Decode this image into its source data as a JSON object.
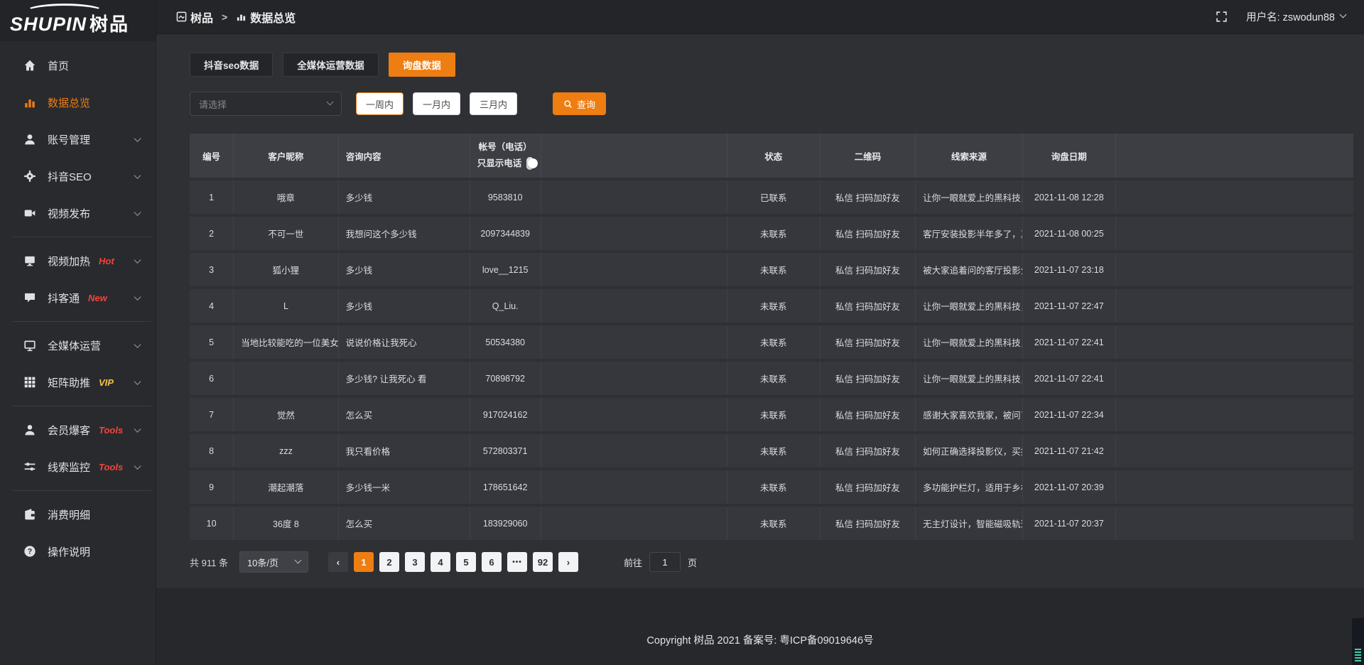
{
  "header": {
    "breadcrumb": [
      {
        "label": "树品"
      },
      {
        "label": "数据总览"
      }
    ],
    "breadcrumb_separator": ">",
    "username_label": "用户名: zswodun88"
  },
  "sidebar": {
    "logo_primary": "SHUPIN",
    "logo_secondary": "树品",
    "items": [
      {
        "label": "首页",
        "icon": "home-icon"
      },
      {
        "label": "数据总览",
        "icon": "chart-icon",
        "active": true
      },
      {
        "label": "账号管理",
        "icon": "user-icon",
        "chevron": true
      },
      {
        "label": "抖音SEO",
        "icon": "gear-icon",
        "chevron": true
      },
      {
        "label": "视频发布",
        "icon": "video-icon",
        "chevron": true
      },
      {
        "divider": true
      },
      {
        "label": "视频加热",
        "icon": "monitor-icon",
        "badge": "Hot",
        "badge_color": "#f1453d",
        "chevron": true
      },
      {
        "label": "抖客通",
        "icon": "chat-icon",
        "badge": "New",
        "badge_color": "#f1453d",
        "chevron": true
      },
      {
        "divider": true
      },
      {
        "label": "全媒体运营",
        "icon": "screen-icon",
        "chevron": true
      },
      {
        "label": "矩阵助推",
        "icon": "grid-icon",
        "badge": "VIP",
        "badge_color": "#f6c444",
        "chevron": true
      },
      {
        "divider": true
      },
      {
        "label": "会员爆客",
        "icon": "member-icon",
        "badge": "Tools",
        "badge_color": "#f1453d",
        "chevron": true
      },
      {
        "label": "线索监控",
        "icon": "sliders-icon",
        "badge": "Tools",
        "badge_color": "#f1453d",
        "chevron": true
      },
      {
        "divider": true
      },
      {
        "label": "消费明细",
        "icon": "wallet-icon"
      },
      {
        "label": "操作说明",
        "icon": "help-icon"
      }
    ]
  },
  "tabs": [
    {
      "label": "抖音seo数据",
      "active": false
    },
    {
      "label": "全媒体运营数据",
      "active": false
    },
    {
      "label": "询盘数据",
      "active": true
    }
  ],
  "filters": {
    "select_placeholder": "请选择",
    "date_ranges": [
      {
        "label": "一周内",
        "selected": true
      },
      {
        "label": "一月内",
        "selected": false
      },
      {
        "label": "三月内",
        "selected": false
      }
    ],
    "search_button": "查询"
  },
  "table": {
    "columns": [
      "编号",
      "客户昵称",
      "咨询内容",
      "帐号（电话）",
      "状态",
      "二维码",
      "线索来源",
      "询盘日期"
    ],
    "phone_toggle_label": "只显示电话",
    "phone_toggle_on": false,
    "rows": [
      {
        "no": "1",
        "nickname": "哦章",
        "content": "多少钱",
        "account": "9583810",
        "status": "已联系",
        "status_contacted": true,
        "qrcode": "私信 扫码加好友",
        "source": "让你一眼就爱上的黑科技，能...",
        "date": "2021-11-08 12:28"
      },
      {
        "no": "2",
        "nickname": "不可一世",
        "content": "我想问这个多少钱",
        "account": "2097344839",
        "status": "未联系",
        "status_contacted": false,
        "qrcode": "私信 扫码加好友",
        "source": "客厅安装投影半年多了，真实...",
        "date": "2021-11-08 00:25"
      },
      {
        "no": "3",
        "nickname": "狐小狸",
        "content": "多少钱",
        "account": "love__1215",
        "status": "未联系",
        "status_contacted": false,
        "qrcode": "私信 扫码加好友",
        "source": "被大家追着问的客厅投影分享...",
        "date": "2021-11-07 23:18"
      },
      {
        "no": "4",
        "nickname": "L",
        "content": "多少钱",
        "account": "Q_Liu.",
        "status": "未联系",
        "status_contacted": false,
        "qrcode": "私信 扫码加好友",
        "source": "让你一眼就爱上的黑科技，能...",
        "date": "2021-11-07 22:47"
      },
      {
        "no": "5",
        "nickname": "当地比较能吃的一位美女",
        "content": "说说价格让我死心",
        "account": "50534380",
        "status": "未联系",
        "status_contacted": false,
        "qrcode": "私信 扫码加好友",
        "source": "让你一眼就爱上的黑科技，能...",
        "date": "2021-11-07 22:41"
      },
      {
        "no": "6",
        "nickname": "",
        "content": "多少钱? 让我死心 看",
        "account": "70898792",
        "status": "未联系",
        "status_contacted": false,
        "qrcode": "私信 扫码加好友",
        "source": "让你一眼就爱上的黑科技，能...",
        "date": "2021-11-07 22:41"
      },
      {
        "no": "7",
        "nickname": "觉然",
        "content": "怎么买",
        "account": "917024162",
        "status": "未联系",
        "status_contacted": false,
        "qrcode": "私信 扫码加好友",
        "source": "感谢大家喜欢我家，被问了好...",
        "date": "2021-11-07 22:34"
      },
      {
        "no": "8",
        "nickname": "zzz",
        "content": "我只看价格",
        "account": "572803371",
        "status": "未联系",
        "status_contacted": false,
        "qrcode": "私信 扫码加好友",
        "source": "如何正确选择投影仪，买投影...",
        "date": "2021-11-07 21:42"
      },
      {
        "no": "9",
        "nickname": "潮起潮落",
        "content": "多少钱一米",
        "account": "178651642",
        "status": "未联系",
        "status_contacted": false,
        "qrcode": "私信 扫码加好友",
        "source": "多功能护栏灯，适用于乡村文...",
        "date": "2021-11-07 20:39"
      },
      {
        "no": "10",
        "nickname": "36度 8",
        "content": "怎么买",
        "account": "183929060",
        "status": "未联系",
        "status_contacted": false,
        "qrcode": "私信 扫码加好友",
        "source": "无主灯设计，智能磁吸轨道灯...",
        "date": "2021-11-07 20:37"
      }
    ]
  },
  "pagination": {
    "total_label": "共 911 条",
    "page_size_label": "10条/页",
    "prev_icon": "‹",
    "next_icon": "›",
    "pages": [
      "1",
      "2",
      "3",
      "4",
      "5",
      "6",
      "•••",
      "92"
    ],
    "active_page": "1",
    "goto_label": "前往",
    "goto_value": "1",
    "goto_suffix": "页"
  },
  "footer": {
    "copyright": "Copyright 树品 2021 备案号: 粤ICP备09019646号"
  },
  "colors": {
    "accent": "#ee7e12",
    "link_orange": "#e0821e",
    "badge_red": "#f1453d",
    "badge_vip": "#f6c444"
  }
}
